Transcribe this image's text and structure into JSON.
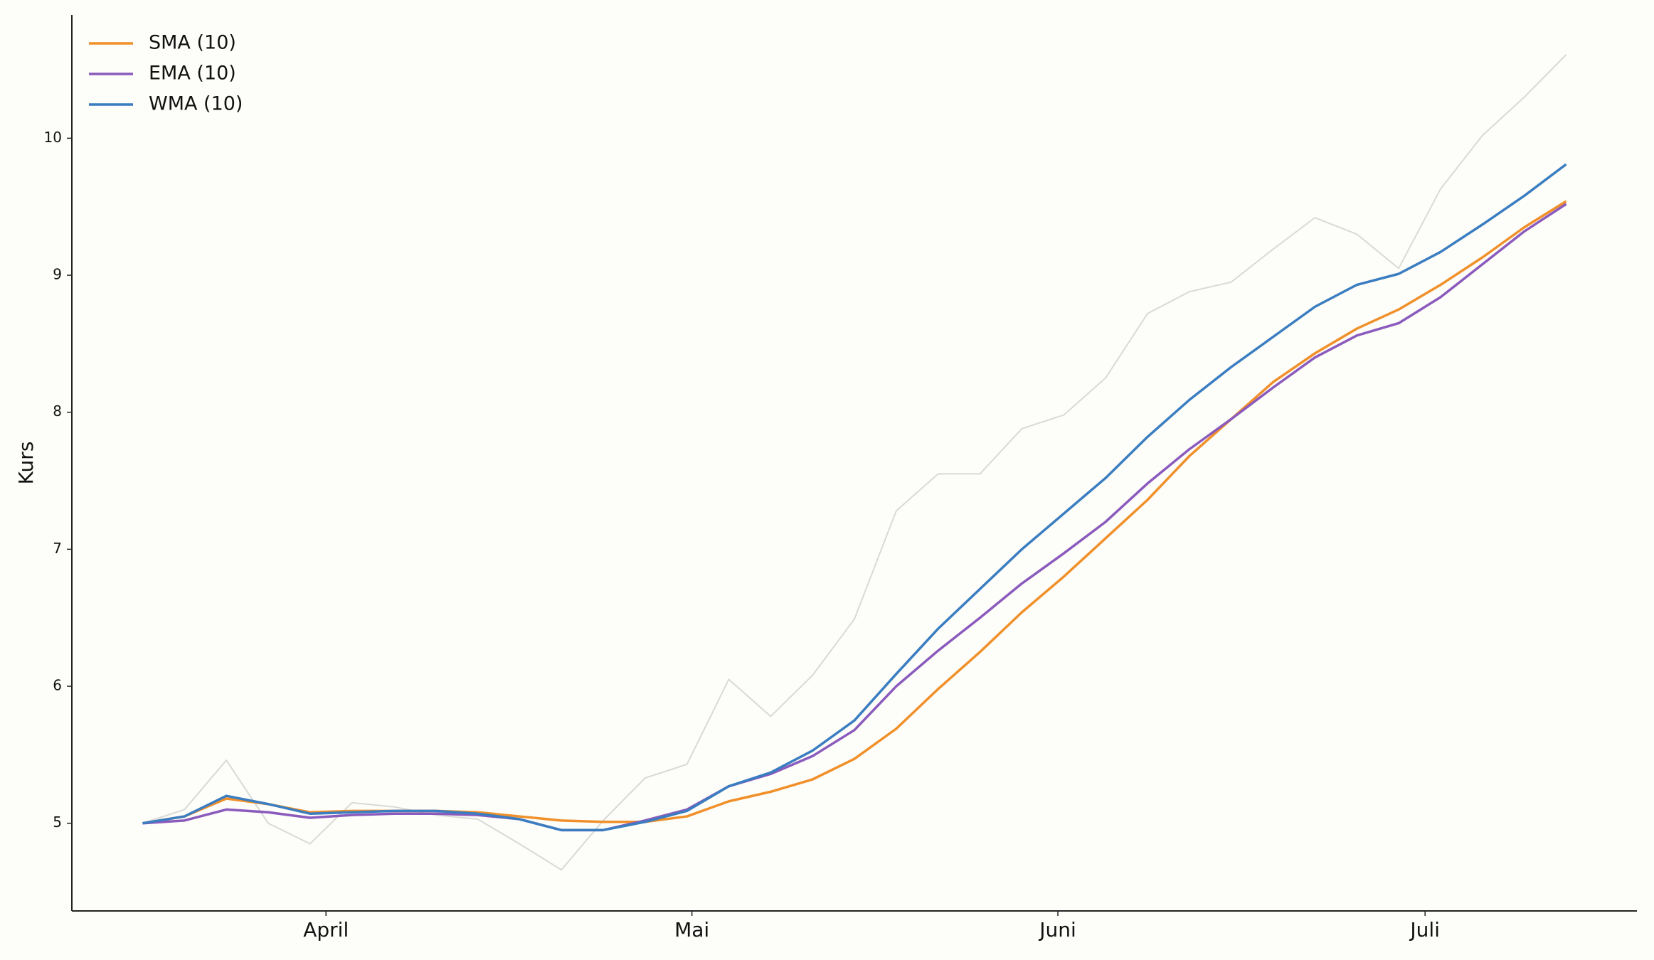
{
  "chart_data": {
    "type": "line",
    "y_label": "Kurs",
    "x": [
      0,
      1,
      2,
      3,
      4,
      5,
      6,
      7,
      8,
      9,
      10,
      11,
      12,
      13,
      14,
      15,
      16,
      17,
      18,
      19,
      20,
      21,
      22,
      23,
      24,
      25,
      26,
      27,
      28,
      29,
      30,
      31,
      32,
      33,
      34
    ],
    "xlim": [
      -1.69,
      35.69
    ],
    "xticks": [
      {
        "value": 4.38,
        "label": "April"
      },
      {
        "value": 13.12,
        "label": "Mai"
      },
      {
        "value": 21.86,
        "label": "Juni"
      },
      {
        "value": 30.63,
        "label": "Juli"
      }
    ],
    "ylim": [
      4.36,
      10.9
    ],
    "yticks": [
      5,
      6,
      7,
      8,
      9,
      10
    ],
    "legend": "upper left",
    "series": [
      {
        "color": "#d9d9d6",
        "values": [
          5.0,
          5.1,
          5.46,
          5.0,
          4.85,
          5.15,
          5.12,
          5.06,
          5.03,
          4.85,
          4.66,
          5.02,
          5.33,
          5.43,
          6.05,
          5.78,
          6.08,
          6.49,
          7.28,
          7.55,
          7.55,
          7.88,
          7.98,
          8.25,
          8.72,
          8.88,
          8.95,
          9.19,
          9.42,
          9.3,
          9.05,
          9.63,
          10.02,
          10.3,
          10.61
        ]
      },
      {
        "name": "SMA (10)",
        "color": "#f0902a",
        "values": [
          5.0,
          5.05,
          5.18,
          5.14,
          5.08,
          5.09,
          5.09,
          5.09,
          5.08,
          5.05,
          5.02,
          5.01,
          5.01,
          5.05,
          5.16,
          5.23,
          5.32,
          5.47,
          5.69,
          5.98,
          6.25,
          6.54,
          6.8,
          7.08,
          7.36,
          7.68,
          7.95,
          8.22,
          8.43,
          8.61,
          8.75,
          8.93,
          9.13,
          9.35,
          9.54
        ]
      },
      {
        "name": "EMA (10)",
        "color": "#8a5bbd",
        "values": [
          5.0,
          5.02,
          5.1,
          5.08,
          5.04,
          5.06,
          5.07,
          5.07,
          5.06,
          5.03,
          4.95,
          4.95,
          5.02,
          5.1,
          5.27,
          5.36,
          5.49,
          5.68,
          6.0,
          6.26,
          6.5,
          6.75,
          6.97,
          7.2,
          7.48,
          7.73,
          7.95,
          8.18,
          8.4,
          8.56,
          8.65,
          8.84,
          9.08,
          9.32,
          9.52
        ]
      },
      {
        "name": "WMA (10)",
        "color": "#3a7dc0",
        "values": [
          5.0,
          5.05,
          5.2,
          5.14,
          5.07,
          5.08,
          5.09,
          5.09,
          5.07,
          5.03,
          4.95,
          4.95,
          5.01,
          5.09,
          5.27,
          5.37,
          5.53,
          5.75,
          6.09,
          6.42,
          6.71,
          7.0,
          7.26,
          7.52,
          7.82,
          8.09,
          8.33,
          8.55,
          8.77,
          8.93,
          9.01,
          9.17,
          9.37,
          9.58,
          9.81
        ]
      }
    ]
  }
}
